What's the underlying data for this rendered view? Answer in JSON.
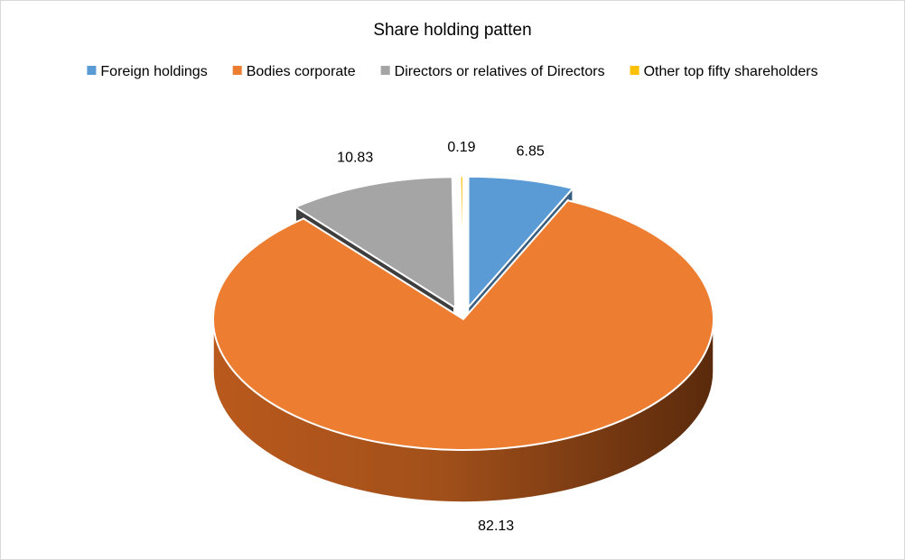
{
  "chart_data": {
    "type": "pie",
    "title": "Share holding patten",
    "legend_position": "top",
    "categories": [
      "Foreign holdings",
      "Bodies corporate",
      "Directors or relatives of Directors",
      "Other top fifty shareholders"
    ],
    "values": [
      6.85,
      82.13,
      10.83,
      0.19
    ],
    "value_labels": [
      "6.85",
      "82.13",
      "10.83",
      "0.19"
    ],
    "colors": [
      "#5B9BD5",
      "#ED7D31",
      "#A5A5A5",
      "#FFC000"
    ],
    "exploded": true,
    "three_d": true
  }
}
